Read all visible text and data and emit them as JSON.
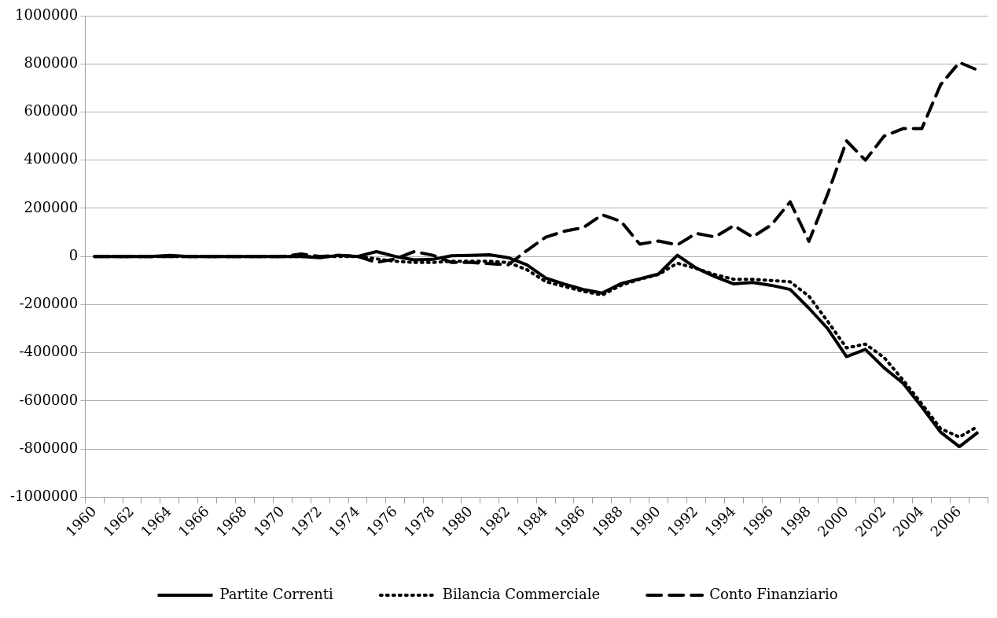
{
  "chart_data": {
    "type": "line",
    "categories": [
      "1960",
      null,
      "1962",
      null,
      "1964",
      null,
      "1966",
      null,
      "1968",
      null,
      "1970",
      null,
      "1972",
      null,
      "1974",
      null,
      "1976",
      null,
      "1978",
      null,
      "1980",
      null,
      "1982",
      null,
      "1984",
      null,
      "1986",
      null,
      "1988",
      null,
      "1990",
      null,
      "1992",
      null,
      "1994",
      null,
      "1996",
      null,
      "1998",
      null,
      "2000",
      null,
      "2002",
      null,
      "2004",
      null,
      "2006",
      null
    ],
    "series": [
      {
        "name": "Partite Correnti",
        "color": "#000000",
        "line_style": "solid",
        "values": [
          0,
          0,
          0,
          0,
          5000,
          0,
          0,
          0,
          0,
          0,
          0,
          0,
          -5000,
          5000,
          0,
          20000,
          0,
          -14000,
          -12000,
          3000,
          5000,
          7000,
          -5000,
          -35000,
          -90000,
          -115000,
          -137000,
          -152000,
          -113000,
          -93000,
          -73000,
          5000,
          -48000,
          -84000,
          -114000,
          -108000,
          -120000,
          -137000,
          -215000,
          -300000,
          -416000,
          -386000,
          -463000,
          -526000,
          -625000,
          -730000,
          -790000,
          -730000
        ]
      },
      {
        "name": "Bilancia Commerciale",
        "color": "#000000",
        "line_style": "dotted",
        "values": [
          0,
          0,
          0,
          0,
          0,
          0,
          0,
          0,
          0,
          0,
          0,
          0,
          0,
          0,
          0,
          -10000,
          -20000,
          -25000,
          -25000,
          -20000,
          -20000,
          -20000,
          -25000,
          -55000,
          -105000,
          -125000,
          -145000,
          -160000,
          -120000,
          -95000,
          -75000,
          -28000,
          -50000,
          -75000,
          -95000,
          -95000,
          -100000,
          -105000,
          -165000,
          -270000,
          -380000,
          -364000,
          -420000,
          -513000,
          -612000,
          -715000,
          -750000,
          -705000
        ]
      },
      {
        "name": "Conto Finanziario",
        "color": "#000000",
        "line_style": "dashed",
        "values": [
          0,
          0,
          0,
          0,
          0,
          0,
          0,
          0,
          0,
          0,
          0,
          10000,
          0,
          5000,
          0,
          -25000,
          -10000,
          20000,
          5000,
          -25000,
          -25000,
          -30000,
          -35000,
          25000,
          80000,
          105000,
          120000,
          173000,
          146000,
          51000,
          64000,
          48000,
          96000,
          81000,
          128000,
          81000,
          131000,
          227000,
          63000,
          260000,
          480000,
          400000,
          500000,
          531000,
          531000,
          713000,
          806000,
          773000
        ]
      }
    ],
    "ylim": [
      -1000000,
      1000000
    ],
    "yticks": [
      -1000000,
      -800000,
      -600000,
      -400000,
      -200000,
      0,
      200000,
      400000,
      600000,
      800000,
      1000000
    ],
    "grid": "y",
    "legend": "bottom",
    "marker": "none"
  }
}
